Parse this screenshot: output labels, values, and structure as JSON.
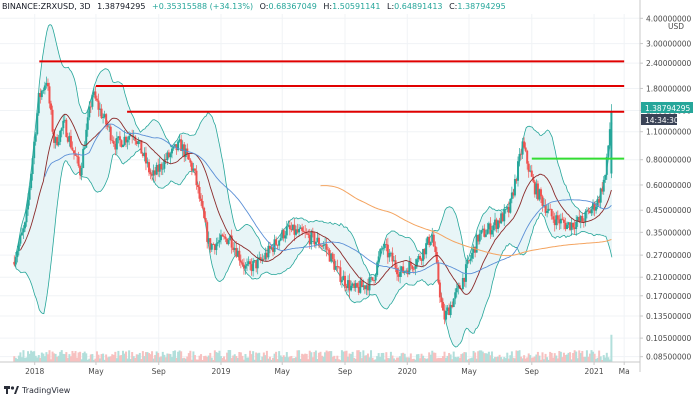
{
  "header": {
    "symbol": "BINANCE:ZRXUSD, 3D",
    "price": "1.38794295",
    "change": "+0.35315588 (+34.13%)",
    "o_label": "O:",
    "o_value": "0.68367049",
    "h_label": "H:",
    "h_value": "1.50591141",
    "l_label": "L:",
    "l_value": "0.64891413",
    "c_label": "C:",
    "c_value": "1.38794295"
  },
  "price_tag": "1.38794295",
  "countdown_tag": "14:34:30",
  "branding": "TradingView",
  "colors": {
    "up": "#26a69a",
    "down": "#ef5350",
    "resistance": "#e00000",
    "breakout": "#33dd33",
    "ma_slow": "#f4a460",
    "ma_mid": "#8b2b2b",
    "ma_blue": "#5b8fd6",
    "band": "#26a69a",
    "band_fill": "#e8f5f7",
    "tag_bg": "#26a69a",
    "tag_dark_bg": "#3a4356"
  },
  "chart_data": {
    "type": "candlestick",
    "y_scale": "log",
    "ylim": [
      0.08,
      4.2
    ],
    "y_unit": "USD",
    "yticks": [
      4.0,
      3.0,
      2.4,
      1.8,
      1.4,
      1.1,
      0.8,
      0.6,
      0.45,
      0.35,
      0.27,
      0.21,
      0.17,
      0.135,
      0.105,
      0.085
    ],
    "ytick_labels": [
      "4.00000000",
      "3.00000000",
      "2.40000000",
      "1.80000000",
      "1.40000000",
      "1.10000000",
      "0.80000000",
      "0.60000000",
      "0.45000000",
      "0.35000000",
      "0.27000000",
      "0.21000000",
      "0.17000000",
      "0.13500000",
      "0.10500000",
      "0.08500000"
    ],
    "xticks": [
      "2018",
      "May",
      "Sep",
      "2019",
      "May",
      "Sep",
      "2020",
      "May",
      "Sep",
      "2021",
      "Ma"
    ],
    "price_path": [
      [
        "2017-11-20",
        0.25
      ],
      [
        "2017-12-15",
        0.38
      ],
      [
        "2018-01-10",
        1.6
      ],
      [
        "2018-01-25",
        2.0
      ],
      [
        "2018-02-10",
        0.95
      ],
      [
        "2018-03-01",
        1.2
      ],
      [
        "2018-04-01",
        0.7
      ],
      [
        "2018-04-25",
        1.7
      ],
      [
        "2018-05-10",
        1.4
      ],
      [
        "2018-06-10",
        0.95
      ],
      [
        "2018-07-15",
        1.1
      ],
      [
        "2018-08-20",
        0.65
      ],
      [
        "2018-09-15",
        0.8
      ],
      [
        "2018-10-15",
        0.95
      ],
      [
        "2018-11-10",
        0.7
      ],
      [
        "2018-12-10",
        0.3
      ],
      [
        "2019-01-20",
        0.33
      ],
      [
        "2019-02-20",
        0.23
      ],
      [
        "2019-03-20",
        0.25
      ],
      [
        "2019-04-15",
        0.3
      ],
      [
        "2019-05-10",
        0.36
      ],
      [
        "2019-06-15",
        0.34
      ],
      [
        "2019-07-25",
        0.3
      ],
      [
        "2019-08-20",
        0.22
      ],
      [
        "2019-09-20",
        0.18
      ],
      [
        "2019-10-25",
        0.2
      ],
      [
        "2019-11-15",
        0.3
      ],
      [
        "2019-12-20",
        0.22
      ],
      [
        "2020-01-25",
        0.26
      ],
      [
        "2020-02-20",
        0.34
      ],
      [
        "2020-03-13",
        0.13
      ],
      [
        "2020-04-15",
        0.19
      ],
      [
        "2020-05-20",
        0.33
      ],
      [
        "2020-06-20",
        0.38
      ],
      [
        "2020-07-20",
        0.45
      ],
      [
        "2020-08-15",
        0.95
      ],
      [
        "2020-09-05",
        0.6
      ],
      [
        "2020-10-10",
        0.42
      ],
      [
        "2020-11-10",
        0.38
      ],
      [
        "2020-12-10",
        0.4
      ],
      [
        "2021-01-10",
        0.5
      ],
      [
        "2021-01-25",
        0.68
      ],
      [
        "2021-02-05",
        1.388
      ]
    ],
    "last_candle": {
      "open": 0.68367049,
      "high": 1.50591141,
      "low": 0.64891413,
      "close": 1.38794295
    },
    "horizontal_levels": [
      {
        "price": 2.45,
        "color": "red",
        "from": "2018-01-10",
        "to": "2021-03-01"
      },
      {
        "price": 1.85,
        "color": "red",
        "from": "2018-05-01",
        "to": "2021-03-01"
      },
      {
        "price": 1.38,
        "color": "red",
        "from": "2018-07-01",
        "to": "2021-03-01"
      },
      {
        "price": 0.81,
        "color": "green",
        "from": "2020-09-01",
        "to": "2021-03-01"
      }
    ]
  }
}
